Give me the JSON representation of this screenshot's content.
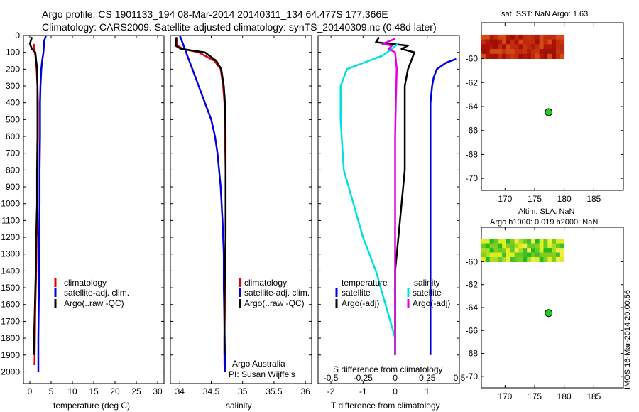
{
  "header": {
    "line1": "Argo profile: CS 1901133_194 08-Mar-2014 20140311_134 64.477S 177.366E",
    "line2": "Climatology: CARS2009. Satellite-adjusted climatology: synTS_20140309.nc (0.48d later)"
  },
  "colors": {
    "climatology": "#e00000",
    "satellite": "#0000dd",
    "argo": "#000000",
    "sat_salinity": "#00e0e0",
    "argo_salinity": "#e000e0",
    "marker": "#22cc22"
  },
  "chart_data": [
    {
      "id": "temperature",
      "type": "line",
      "xlabel": "temperature (deg C)",
      "ylabel": "",
      "xlim": [
        -1.5,
        31.5
      ],
      "ylim": [
        2070,
        0
      ],
      "xticks": [
        0,
        5,
        10,
        15,
        20,
        25,
        30
      ],
      "yticks": [
        0,
        100,
        200,
        300,
        400,
        500,
        600,
        700,
        800,
        900,
        1000,
        1100,
        1200,
        1300,
        1400,
        1500,
        1600,
        1700,
        1800,
        1900,
        2000
      ],
      "legend": [
        "climatology",
        "satellite-adj. clim.",
        "Argo(..raw -QC)"
      ],
      "series": [
        {
          "name": "climatology",
          "color": "#e00000",
          "points": [
            [
              0.9,
              50
            ],
            [
              1.0,
              80
            ],
            [
              1.3,
              120
            ],
            [
              1.6,
              200
            ],
            [
              1.8,
              300
            ],
            [
              1.9,
              400
            ],
            [
              1.9,
              600
            ],
            [
              1.8,
              800
            ],
            [
              1.8,
              1000
            ],
            [
              1.6,
              1200
            ],
            [
              1.5,
              1400
            ],
            [
              1.3,
              1600
            ],
            [
              1.2,
              1800
            ],
            [
              1.1,
              1960
            ]
          ]
        },
        {
          "name": "satellite-adj. clim.",
          "color": "#0000dd",
          "points": [
            [
              3.8,
              0
            ],
            [
              3.4,
              30
            ],
            [
              3.3,
              60
            ],
            [
              3.2,
              100
            ],
            [
              2.9,
              150
            ],
            [
              2.7,
              200
            ],
            [
              2.5,
              300
            ],
            [
              2.4,
              400
            ],
            [
              2.4,
              600
            ],
            [
              2.3,
              800
            ],
            [
              2.3,
              1000
            ],
            [
              2.2,
              1200
            ],
            [
              2.2,
              1400
            ],
            [
              2.1,
              1600
            ],
            [
              2.0,
              1800
            ],
            [
              2.0,
              2000
            ]
          ]
        },
        {
          "name": "Argo(..raw -QC)",
          "color": "#000000",
          "points": [
            [
              0.5,
              10
            ],
            [
              0.0,
              50
            ],
            [
              0.5,
              80
            ],
            [
              1.3,
              100
            ],
            [
              1.5,
              150
            ],
            [
              1.7,
              200
            ],
            [
              1.8,
              300
            ],
            [
              1.8,
              400
            ],
            [
              1.8,
              600
            ],
            [
              1.7,
              800
            ],
            [
              1.7,
              1000
            ],
            [
              1.5,
              1200
            ],
            [
              1.4,
              1400
            ],
            [
              1.2,
              1600
            ],
            [
              1.0,
              1800
            ],
            [
              1.0,
              1900
            ]
          ]
        }
      ]
    },
    {
      "id": "salinity",
      "type": "line",
      "xlabel": "salinity",
      "ylabel": "",
      "xlim": [
        33.85,
        36.1
      ],
      "ylim": [
        2070,
        0
      ],
      "xticks": [
        34,
        34.5,
        35,
        35.5,
        36
      ],
      "xticklabels": [
        "34",
        "34.5",
        "35",
        "35.5",
        "36"
      ],
      "legend": [
        "climatology",
        "satellite-adj. clim.",
        "Argo(..raw -QC)"
      ],
      "annotations": [
        "Argo Australia",
        "PI: Susan Wijffels"
      ],
      "series": [
        {
          "name": "climatology",
          "color": "#e00000",
          "points": [
            [
              33.94,
              10
            ],
            [
              33.96,
              60
            ],
            [
              34.05,
              80
            ],
            [
              34.3,
              100
            ],
            [
              34.55,
              150
            ],
            [
              34.65,
              200
            ],
            [
              34.69,
              300
            ],
            [
              34.71,
              400
            ],
            [
              34.72,
              600
            ],
            [
              34.73,
              800
            ],
            [
              34.73,
              1000
            ],
            [
              34.73,
              1200
            ],
            [
              34.72,
              1400
            ],
            [
              34.72,
              1600
            ],
            [
              34.71,
              1800
            ],
            [
              34.71,
              1960
            ]
          ]
        },
        {
          "name": "satellite-adj. clim.",
          "color": "#0000dd",
          "points": [
            [
              34.0,
              0
            ],
            [
              34.05,
              50
            ],
            [
              34.1,
              100
            ],
            [
              34.15,
              150
            ],
            [
              34.2,
              200
            ],
            [
              34.3,
              300
            ],
            [
              34.4,
              400
            ],
            [
              34.5,
              500
            ],
            [
              34.56,
              600
            ],
            [
              34.6,
              700
            ],
            [
              34.65,
              900
            ],
            [
              34.68,
              1100
            ],
            [
              34.7,
              1300
            ],
            [
              34.7,
              1500
            ],
            [
              34.71,
              1700
            ],
            [
              34.72,
              1900
            ],
            [
              34.72,
              2000
            ]
          ]
        },
        {
          "name": "Argo(..raw -QC)",
          "color": "#000000",
          "points": [
            [
              33.95,
              10
            ],
            [
              33.93,
              60
            ],
            [
              34.02,
              80
            ],
            [
              34.4,
              100
            ],
            [
              34.58,
              150
            ],
            [
              34.66,
              200
            ],
            [
              34.7,
              300
            ],
            [
              34.72,
              400
            ],
            [
              34.73,
              600
            ],
            [
              34.73,
              800
            ],
            [
              34.73,
              1000
            ],
            [
              34.73,
              1200
            ],
            [
              34.72,
              1400
            ],
            [
              34.71,
              1600
            ],
            [
              34.71,
              1800
            ],
            [
              34.71,
              1900
            ]
          ]
        }
      ]
    },
    {
      "id": "difference",
      "type": "line",
      "xlabel": "T difference from climatology",
      "xlabel_top": "S difference from climatology",
      "ylabel": "",
      "xlim": [
        -2.4,
        2.0
      ],
      "ylim": [
        2070,
        0
      ],
      "xticks": [
        -2,
        -1,
        0,
        1
      ],
      "xticks_top": [
        -0.5,
        -0.25,
        0,
        0.25,
        0.5
      ],
      "legend_headers": [
        "temperature",
        "salinity"
      ],
      "legend": [
        "satellite",
        "Argo(-adj)",
        "satellite",
        "Argo(-adj)"
      ],
      "series": [
        {
          "name": "temperature satellite",
          "color": "#0000dd",
          "points": [
            [
              1.9,
              140
            ],
            [
              1.6,
              160
            ],
            [
              1.3,
              200
            ],
            [
              1.2,
              250
            ],
            [
              1.15,
              300
            ],
            [
              1.1,
              400
            ],
            [
              1.1,
              600
            ],
            [
              1.1,
              800
            ],
            [
              1.1,
              1000
            ],
            [
              1.1,
              1200
            ],
            [
              1.1,
              1400
            ],
            [
              1.1,
              1600
            ],
            [
              1.1,
              1800
            ],
            [
              1.1,
              1900
            ]
          ]
        },
        {
          "name": "temperature Argo(-adj)",
          "color": "#000000",
          "points": [
            [
              -0.5,
              10
            ],
            [
              -0.6,
              40
            ],
            [
              0.4,
              60
            ],
            [
              0.2,
              80
            ],
            [
              0.6,
              100
            ],
            [
              0.4,
              200
            ],
            [
              0.3,
              300
            ],
            [
              0.3,
              400
            ],
            [
              0.3,
              600
            ],
            [
              0.3,
              800
            ],
            [
              0.2,
              1000
            ],
            [
              0.1,
              1200
            ],
            [
              0.0,
              1400
            ],
            [
              0.0,
              1600
            ],
            [
              0.0,
              1800
            ],
            [
              0.0,
              1900
            ]
          ]
        },
        {
          "name": "salinity satellite",
          "color": "#00e0e0",
          "points": [
            [
              0.08,
              50
            ],
            [
              -0.1,
              80
            ],
            [
              -0.4,
              120
            ],
            [
              -1.5,
              200
            ],
            [
              -1.7,
              300
            ],
            [
              -1.7,
              500
            ],
            [
              -1.6,
              800
            ],
            [
              -1.3,
              1000
            ],
            [
              -1.0,
              1200
            ],
            [
              -0.6,
              1400
            ],
            [
              -0.3,
              1600
            ],
            [
              0.0,
              1800
            ],
            [
              0.0,
              1900
            ]
          ]
        },
        {
          "name": "salinity Argo(-adj)",
          "color": "#e000e0",
          "points": [
            [
              0.0,
              20
            ],
            [
              -0.4,
              50
            ],
            [
              -0.1,
              60
            ],
            [
              -0.2,
              80
            ],
            [
              0.0,
              100
            ],
            [
              0.05,
              200
            ],
            [
              0.02,
              400
            ],
            [
              0.0,
              600
            ],
            [
              0.0,
              1000
            ],
            [
              0.0,
              1400
            ],
            [
              0.0,
              1800
            ],
            [
              0.0,
              1900
            ]
          ]
        }
      ]
    },
    {
      "id": "sat-sst-map",
      "type": "heatmap",
      "title": "sat. SST: NaN Argo: 1.63",
      "xlim": [
        166,
        190
      ],
      "ylim": [
        -71,
        -57
      ],
      "xticks": [
        170,
        175,
        180,
        185
      ],
      "yticks": [
        -60,
        -62,
        -64,
        -66,
        -68,
        -70
      ],
      "marker": {
        "lon": 177.366,
        "lat": -64.477
      },
      "field_extent": {
        "lon": [
          166,
          180
        ],
        "lat": [
          -60,
          -58
        ]
      }
    },
    {
      "id": "altim-sla-map",
      "type": "heatmap",
      "title": "Altim. SLA: NaN",
      "subtitle": "Argo h1000: 0.019 h2000: NaN",
      "xlim": [
        166,
        190
      ],
      "ylim": [
        -71,
        -57
      ],
      "xticks": [
        170,
        175,
        180,
        185
      ],
      "yticks": [
        -60,
        -62,
        -64,
        -66,
        -68,
        -70
      ],
      "marker": {
        "lon": 177.366,
        "lat": -64.477
      },
      "field_extent": {
        "lon": [
          166,
          180
        ],
        "lat": [
          -60,
          -58
        ]
      }
    }
  ],
  "footer_stamp": "IMOS 16-Mar-2014 20:00:56"
}
